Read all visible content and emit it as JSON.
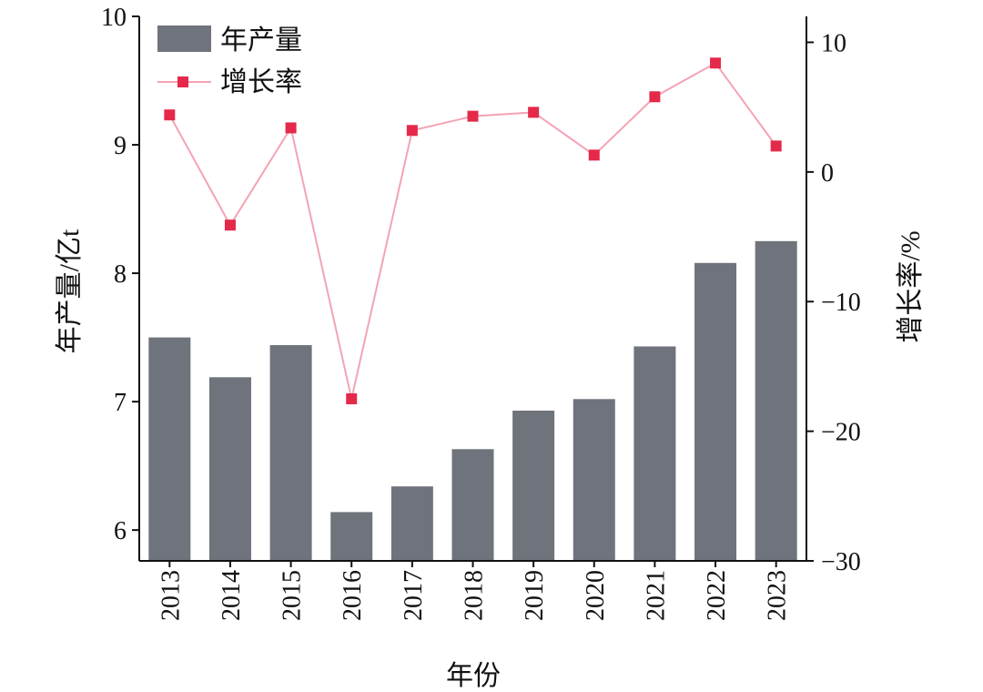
{
  "chart_data": {
    "type": "bar+line",
    "xlabel": "年份",
    "ylabel_left": "年产量/亿t",
    "ylabel_right": "增长率/%",
    "categories": [
      "2013",
      "2014",
      "2015",
      "2016",
      "2017",
      "2018",
      "2019",
      "2020",
      "2021",
      "2022",
      "2023"
    ],
    "ylim_left": [
      5.76,
      10
    ],
    "yticks_left": [
      6,
      7,
      8,
      9,
      10
    ],
    "ylim_right": [
      -30,
      12
    ],
    "yticks_right": [
      -30,
      -20,
      -10,
      0,
      10
    ],
    "series": [
      {
        "name": "年产量",
        "type": "bar",
        "axis": "left",
        "color": "#6f737b",
        "values": [
          7.5,
          7.19,
          7.44,
          6.14,
          6.34,
          6.63,
          6.93,
          7.02,
          7.43,
          8.08,
          8.25
        ]
      },
      {
        "name": "增长率",
        "type": "line",
        "axis": "right",
        "color": "#f4a3b4",
        "marker_color": "#e5294b",
        "values": [
          4.4,
          -4.1,
          3.4,
          -17.5,
          3.2,
          4.3,
          4.6,
          1.3,
          5.8,
          8.4,
          2.0
        ]
      }
    ],
    "legend": "top-left",
    "grid": false
  }
}
